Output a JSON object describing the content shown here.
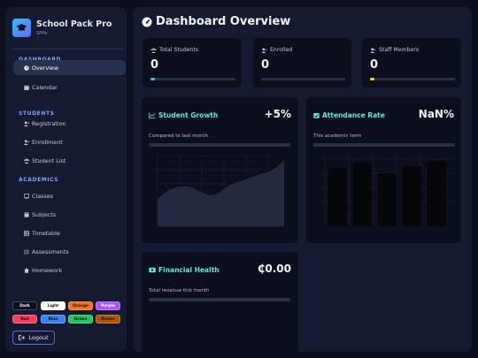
{
  "sidebar": {
    "brand_title": "School Pack Pro",
    "brand_sub": "SPPa",
    "sections": {
      "dashboard": "DASHBOARD",
      "students": "STUDENTS",
      "academics": "ACADEMICS"
    },
    "items": [
      {
        "label": "Overview",
        "icon": "dashboard-icon",
        "active": true
      },
      {
        "label": "Calendar",
        "icon": "calendar-icon"
      },
      {
        "label": "Registration",
        "icon": "user-plus-icon"
      },
      {
        "label": "Enrollment",
        "icon": "user-check-icon"
      },
      {
        "label": "Student List",
        "icon": "users-icon"
      },
      {
        "label": "Classes",
        "icon": "monitor-icon"
      },
      {
        "label": "Subjects",
        "icon": "book-icon"
      },
      {
        "label": "Timetable",
        "icon": "table-icon"
      },
      {
        "label": "Assessments",
        "icon": "list-icon"
      },
      {
        "label": "Homework",
        "icon": "home-icon"
      }
    ],
    "themes": [
      {
        "label": "Dark",
        "bg": "#0b0f1c",
        "fg": "#ffffff"
      },
      {
        "label": "Light",
        "bg": "#ffffff",
        "fg": "#111111"
      },
      {
        "label": "Orange",
        "bg": "#f97316",
        "fg": "#111111"
      },
      {
        "label": "Purple",
        "bg": "#a855f7",
        "fg": "#ffffff"
      },
      {
        "label": "Red",
        "bg": "#f43f5e",
        "fg": "#111111"
      },
      {
        "label": "Blue",
        "bg": "#3b82f6",
        "fg": "#111111"
      },
      {
        "label": "Green",
        "bg": "#22c55e",
        "fg": "#111111"
      },
      {
        "label": "Brown",
        "bg": "#b45309",
        "fg": "#111111"
      }
    ],
    "logout_label": "Logout"
  },
  "main": {
    "title": "Dashboard Overview",
    "stats": [
      {
        "label": "Total Students",
        "value": "0",
        "fill_color": "#38bdf8",
        "fill_fraction": 0.05
      },
      {
        "label": "Enrolled",
        "value": "0",
        "fill_color": "#2a3147",
        "fill_fraction": 0.0
      },
      {
        "label": "Staff Members",
        "value": "0",
        "fill_color": "#facc15",
        "fill_fraction": 0.05
      }
    ],
    "growth": {
      "title": "Student Growth",
      "value": "+5%",
      "subtitle": "Compared to last month"
    },
    "attendance": {
      "title": "Attendance Rate",
      "value": "NaN%",
      "subtitle": "This academic term"
    },
    "finance": {
      "title": "Financial Health",
      "value": "₵0.00",
      "subtitle": "Total revenue this month"
    }
  },
  "colors": {
    "accent": "#5eead4",
    "active_nav": "#27324f",
    "panel": "#141b30",
    "card": "#0b0f1c"
  }
}
